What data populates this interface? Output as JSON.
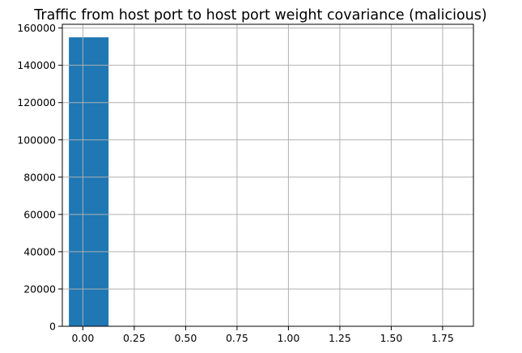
{
  "chart_data": {
    "type": "bar",
    "title": "Traffic from host port to host port weight covariance (malicious)",
    "xlabel": "",
    "ylabel": "",
    "xlim": [
      -0.1,
      1.9
    ],
    "ylim": [
      0,
      162000
    ],
    "x_ticks": [
      0.0,
      0.25,
      0.5,
      0.75,
      1.0,
      1.25,
      1.5,
      1.75
    ],
    "x_tick_labels": [
      "0.00",
      "0.25",
      "0.50",
      "0.75",
      "1.00",
      "1.25",
      "1.50",
      "1.75"
    ],
    "y_ticks": [
      0,
      20000,
      40000,
      60000,
      80000,
      100000,
      120000,
      140000,
      160000
    ],
    "y_tick_labels": [
      "0",
      "20000",
      "40000",
      "60000",
      "80000",
      "100000",
      "120000",
      "140000",
      "160000"
    ],
    "grid": true,
    "bins": [
      {
        "x0": -0.068,
        "x1": 0.125,
        "count": 155000
      }
    ],
    "colors": {
      "bar": "#1f77b4",
      "grid": "#b0b0b0",
      "axis": "#000000"
    }
  }
}
